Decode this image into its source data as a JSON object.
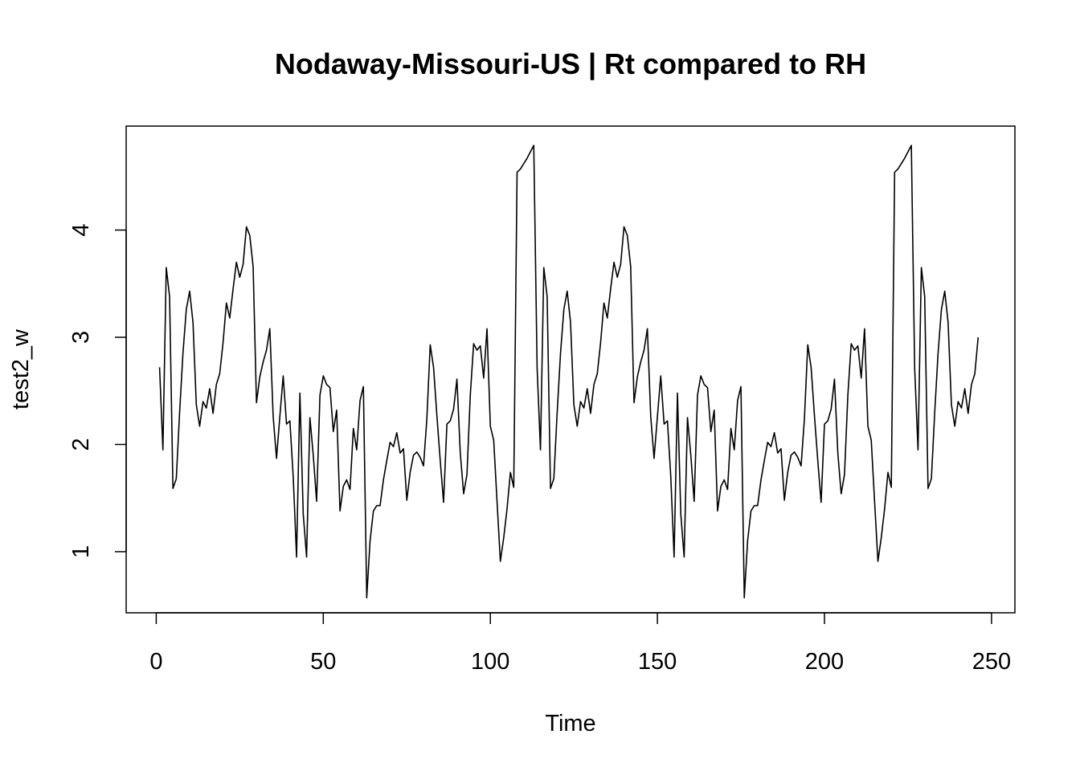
{
  "chart_data": {
    "type": "line",
    "title": "Nodaway-Missouri-US | Rt compared to RH",
    "xlabel": "Time",
    "ylabel": "test2_w",
    "xlim": [
      -9,
      257
    ],
    "ylim": [
      0.43,
      4.97
    ],
    "x_ticks": [
      0,
      50,
      100,
      150,
      200,
      250
    ],
    "y_ticks": [
      1,
      2,
      3,
      4
    ],
    "grid": false,
    "legend": "none",
    "line_color": "#000000",
    "series": [
      {
        "x_start": 1,
        "values": [
          2.72,
          1.95,
          3.65,
          3.38,
          1.59,
          1.68,
          2.3,
          2.85,
          3.26,
          3.43,
          3.14,
          2.37,
          2.17,
          2.4,
          2.34,
          2.52,
          2.29,
          2.56,
          2.66,
          2.95,
          3.32,
          3.18,
          3.45,
          3.7,
          3.56,
          3.68,
          4.03,
          3.95,
          3.66,
          2.39,
          2.63,
          2.77,
          2.88,
          3.08,
          2.26,
          1.87,
          2.26,
          2.64,
          2.19,
          2.22,
          1.7,
          0.95,
          2.48,
          1.35,
          0.95,
          2.25,
          1.9,
          1.47,
          2.46,
          2.64,
          2.56,
          2.53,
          2.12,
          2.32,
          1.38,
          1.61,
          1.67,
          1.58,
          2.15,
          1.95,
          2.41,
          2.54,
          0.57,
          1.1,
          1.38,
          1.43,
          1.43,
          1.67,
          1.85,
          2.02,
          1.98,
          2.11,
          1.92,
          1.96,
          1.48,
          1.74,
          1.9,
          1.93,
          1.88,
          1.8,
          2.24,
          2.93,
          2.72,
          2.27,
          1.85,
          1.46,
          2.19,
          2.22,
          2.33,
          2.61,
          1.92,
          1.54,
          1.72,
          2.46,
          2.94,
          2.88,
          2.92,
          2.62,
          3.08,
          2.17,
          2.04,
          1.47,
          0.91,
          1.13,
          1.4,
          1.74,
          1.6,
          4.54,
          4.57,
          4.62,
          4.67,
          4.73,
          4.79,
          2.71,
          1.95,
          3.65,
          3.38,
          1.59,
          1.68,
          2.3,
          2.85,
          3.26,
          3.43,
          3.14,
          2.37,
          2.17,
          2.4,
          2.34,
          2.52,
          2.29,
          2.56,
          2.66,
          2.95,
          3.32,
          3.18,
          3.45,
          3.7,
          3.56,
          3.68,
          4.03,
          3.95,
          3.66,
          2.39,
          2.63,
          2.77,
          2.88,
          3.08,
          2.26,
          1.87,
          2.26,
          2.64,
          2.19,
          2.22,
          1.7,
          0.95,
          2.48,
          1.35,
          0.95,
          2.25,
          1.9,
          1.47,
          2.46,
          2.64,
          2.56,
          2.53,
          2.12,
          2.32,
          1.38,
          1.61,
          1.67,
          1.58,
          2.15,
          1.95,
          2.41,
          2.54,
          0.57,
          1.1,
          1.38,
          1.43,
          1.43,
          1.67,
          1.85,
          2.02,
          1.98,
          2.11,
          1.92,
          1.96,
          1.48,
          1.74,
          1.9,
          1.93,
          1.88,
          1.8,
          2.24,
          2.93,
          2.72,
          2.27,
          1.85,
          1.46,
          2.19,
          2.22,
          2.33,
          2.61,
          1.92,
          1.54,
          1.72,
          2.46,
          2.94,
          2.88,
          2.92,
          2.62,
          3.08,
          2.17,
          2.04,
          1.47,
          0.91,
          1.13,
          1.4,
          1.74,
          1.6,
          4.54,
          4.57,
          4.62,
          4.67,
          4.73,
          4.79,
          2.71,
          1.95,
          3.65,
          3.38,
          1.59,
          1.68,
          2.3,
          2.85,
          3.26,
          3.43,
          3.14,
          2.37,
          2.17,
          2.4,
          2.34,
          2.52,
          2.29,
          2.56,
          2.66,
          3.0
        ]
      }
    ]
  }
}
